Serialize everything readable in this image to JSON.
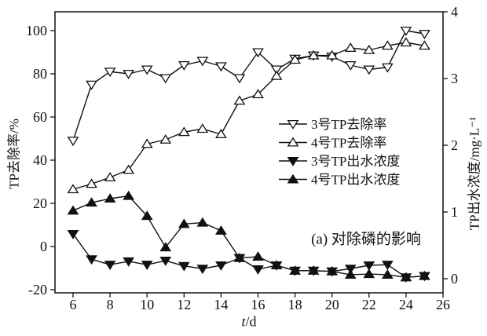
{
  "chart_data": {
    "type": "line",
    "title": "",
    "annotation": "(a) 对除磷的影响",
    "xlabel": "t/d",
    "xlabel_var": "t",
    "xlabel_unit": "/d",
    "ylabel_left": "TP去除率/%",
    "ylabel_right": "TP出水浓度/mg·L⁻¹",
    "x_ticks": [
      6,
      8,
      10,
      12,
      14,
      16,
      18,
      20,
      22,
      24,
      26
    ],
    "left_ticks": [
      -20,
      0,
      20,
      40,
      60,
      80,
      100
    ],
    "right_ticks": [
      0,
      1,
      2,
      3,
      4
    ],
    "xlim": [
      5,
      26
    ],
    "ylim_left": [
      -21.5,
      108.7
    ],
    "ylim_right": [
      0,
      4.2
    ],
    "grid": "off",
    "legend_position": "center-right-inside",
    "line_color": "#111111",
    "x": [
      6,
      7,
      8,
      9,
      10,
      11,
      12,
      13,
      14,
      15,
      16,
      17,
      18,
      19,
      20,
      21,
      22,
      23,
      24,
      25
    ],
    "series": [
      {
        "name": "3号TP去除率",
        "axis": "left",
        "unit": "%",
        "marker": "triangle-down",
        "fill": "open",
        "values": [
          49,
          75,
          81,
          80,
          82,
          78,
          84,
          86,
          83.5,
          78,
          90,
          82,
          87,
          88.5,
          88,
          84,
          82,
          83,
          100,
          98.5
        ]
      },
      {
        "name": "4号TP去除率",
        "axis": "left",
        "unit": "%",
        "marker": "triangle-up",
        "fill": "open",
        "values": [
          26.5,
          29,
          32,
          35.5,
          47.5,
          49.5,
          53,
          54.5,
          52,
          67.5,
          70.5,
          79,
          86.5,
          88.5,
          88.5,
          92,
          91,
          93,
          94.5,
          93
        ]
      },
      {
        "name": "3号TP出水浓度",
        "axis": "right",
        "unit": "mg·L⁻¹",
        "marker": "triangle-down",
        "fill": "solid",
        "values": [
          0.67,
          0.29,
          0.21,
          0.26,
          0.21,
          0.27,
          0.19,
          0.15,
          0.2,
          0.31,
          0.14,
          0.2,
          0.12,
          0.12,
          0.11,
          0.15,
          0.2,
          0.21,
          0.02,
          0.04
        ]
      },
      {
        "name": "4号TP出水浓度",
        "axis": "right",
        "unit": "mg·L⁻¹",
        "marker": "triangle-up",
        "fill": "solid",
        "values": [
          1.02,
          1.14,
          1.2,
          1.24,
          0.94,
          0.47,
          0.82,
          0.84,
          0.72,
          0.31,
          0.33,
          0.2,
          0.12,
          0.12,
          0.11,
          0.06,
          0.07,
          0.06,
          0.02,
          0.04
        ]
      }
    ]
  }
}
